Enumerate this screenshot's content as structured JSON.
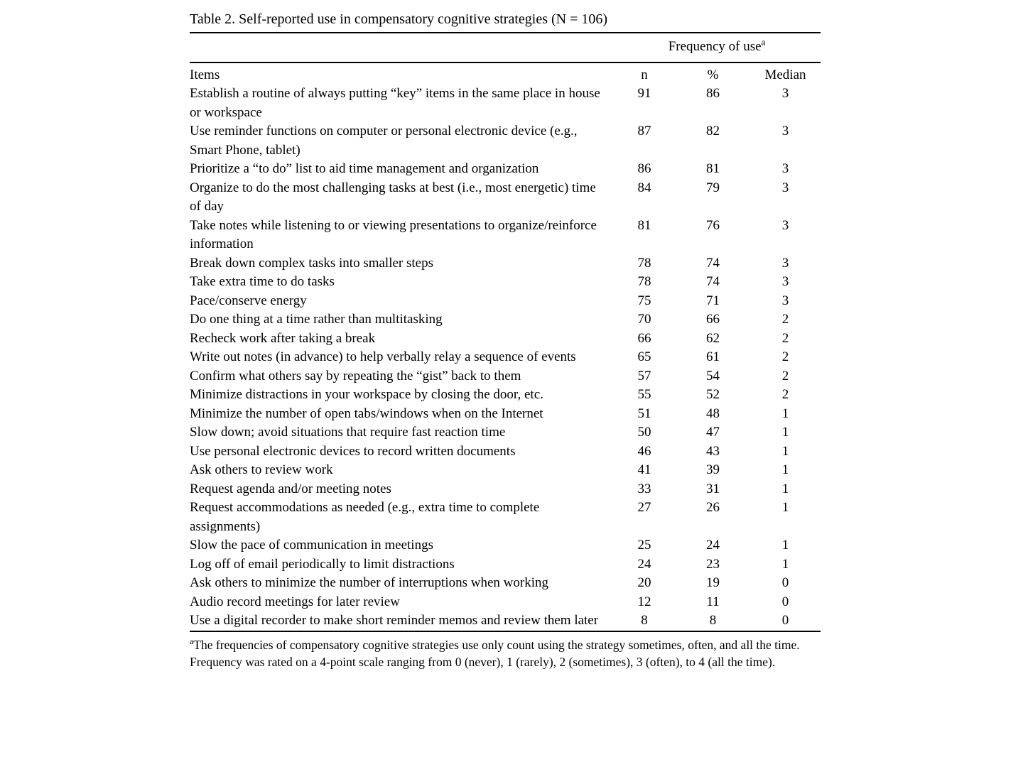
{
  "title": "Table 2. Self-reported use in compensatory cognitive strategies (N = 106)",
  "header": {
    "spanner": "Frequency of use",
    "spanner_sup": "a",
    "columns": [
      "Items",
      "n",
      "%",
      "Median"
    ]
  },
  "rows": [
    {
      "item": "Establish a routine of always putting “key” items in the same place in house or workspace",
      "n": "91",
      "pct": "86",
      "median": "3"
    },
    {
      "item": "Use reminder functions on computer or personal electronic device (e.g., Smart Phone, tablet)",
      "n": "87",
      "pct": "82",
      "median": "3"
    },
    {
      "item": "Prioritize a “to do” list to aid time management and organization",
      "n": "86",
      "pct": "81",
      "median": "3"
    },
    {
      "item": "Organize to do the most challenging tasks at best (i.e., most energetic) time of day",
      "n": "84",
      "pct": "79",
      "median": "3"
    },
    {
      "item": "Take notes while listening to or viewing presentations to organize/reinforce information",
      "n": "81",
      "pct": "76",
      "median": "3"
    },
    {
      "item": "Break down complex tasks into smaller steps",
      "n": "78",
      "pct": "74",
      "median": "3"
    },
    {
      "item": "Take extra time to do tasks",
      "n": "78",
      "pct": "74",
      "median": "3"
    },
    {
      "item": "Pace/conserve energy",
      "n": "75",
      "pct": "71",
      "median": "3"
    },
    {
      "item": "Do one thing at a time rather than multitasking",
      "n": "70",
      "pct": "66",
      "median": "2"
    },
    {
      "item": "Recheck work after taking a break",
      "n": "66",
      "pct": "62",
      "median": "2"
    },
    {
      "item": "Write out notes (in advance) to help verbally relay a sequence of events",
      "n": "65",
      "pct": "61",
      "median": "2"
    },
    {
      "item": "Confirm what others say by repeating the “gist” back to them",
      "n": "57",
      "pct": "54",
      "median": "2"
    },
    {
      "item": "Minimize distractions in your workspace by closing the door, etc.",
      "n": "55",
      "pct": "52",
      "median": "2"
    },
    {
      "item": "Minimize the number of open tabs/windows when on the Internet",
      "n": "51",
      "pct": "48",
      "median": "1"
    },
    {
      "item": "Slow down; avoid situations that require fast reaction time",
      "n": "50",
      "pct": "47",
      "median": "1"
    },
    {
      "item": "Use personal electronic devices to record written documents",
      "n": "46",
      "pct": "43",
      "median": "1"
    },
    {
      "item": "Ask others to review work",
      "n": "41",
      "pct": "39",
      "median": "1"
    },
    {
      "item": "Request agenda and/or meeting notes",
      "n": "33",
      "pct": "31",
      "median": "1"
    },
    {
      "item": "Request accommodations as needed (e.g., extra time to complete assignments)",
      "n": "27",
      "pct": "26",
      "median": "1"
    },
    {
      "item": "Slow the pace of communication in meetings",
      "n": "25",
      "pct": "24",
      "median": "1"
    },
    {
      "item": "Log off of email periodically to limit distractions",
      "n": "24",
      "pct": "23",
      "median": "1"
    },
    {
      "item": "Ask others to minimize the number of interruptions when working",
      "n": "20",
      "pct": "19",
      "median": "0"
    },
    {
      "item": "Audio record meetings for later review",
      "n": "12",
      "pct": "11",
      "median": "0"
    },
    {
      "item": "Use a digital recorder to make short reminder memos and review them later",
      "n": "8",
      "pct": "8",
      "median": "0"
    }
  ],
  "footnotes": [
    {
      "sup": "a",
      "text": "The frequencies of compensatory cognitive strategies use only count using the strategy sometimes, often, and all the time."
    },
    {
      "sup": "",
      "text": "Frequency was rated on a 4-point scale ranging from 0 (never), 1 (rarely), 2 (sometimes), 3 (often), to 4 (all the time)."
    }
  ]
}
